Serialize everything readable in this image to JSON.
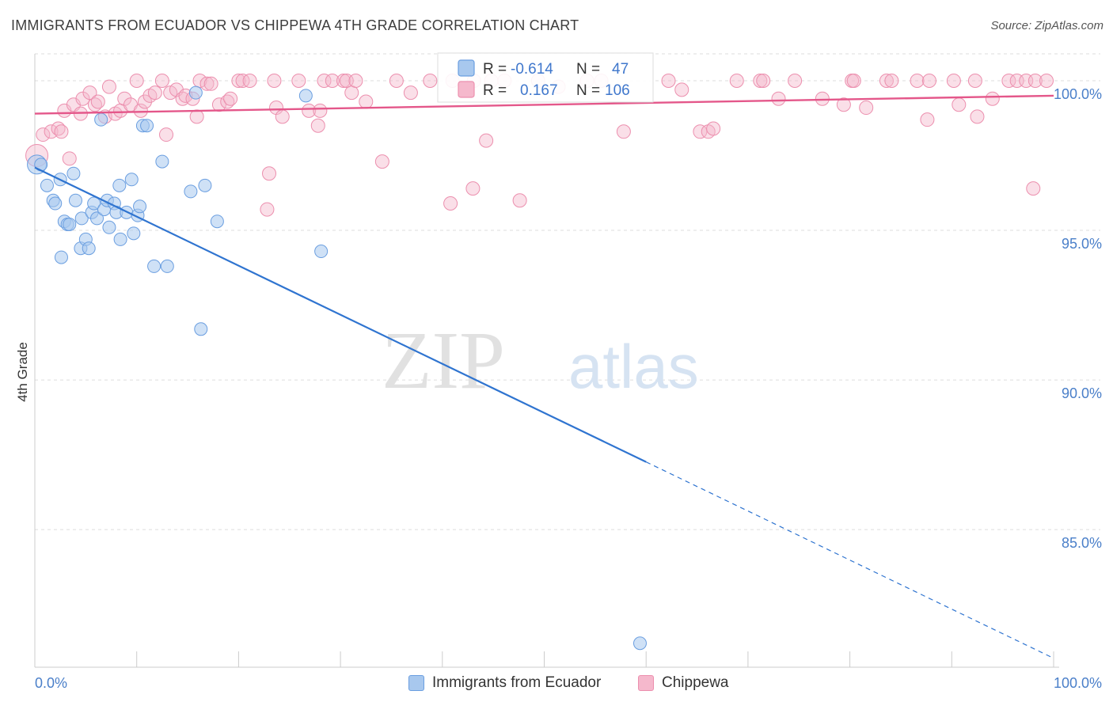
{
  "header": {
    "title": "IMMIGRANTS FROM ECUADOR VS CHIPPEWA 4TH GRADE CORRELATION CHART",
    "source": "Source: ZipAtlas.com"
  },
  "watermark": {
    "zip": "ZIP",
    "atlas": "atlas"
  },
  "legend": {
    "rows": [
      {
        "r_label": "R = ",
        "r_value": "-0.614",
        "n_label": "N = ",
        "n_value": "47"
      },
      {
        "r_label": "R = ",
        "r_value": "0.167",
        "n_label": "N = ",
        "n_value": "106"
      }
    ]
  },
  "colors": {
    "blue_fill": "#a8c8ee",
    "blue_stroke": "#6a9ee0",
    "blue_line": "#2f74d0",
    "pink_fill": "#f5b8cc",
    "pink_stroke": "#ec8fae",
    "pink_line": "#e4578a",
    "tick": "#4a7fc9",
    "grid": "#dddddd"
  },
  "chart_data": {
    "type": "scatter",
    "title": "IMMIGRANTS FROM ECUADOR VS CHIPPEWA 4TH GRADE CORRELATION CHART",
    "xlabel": "",
    "ylabel": "4th Grade",
    "xlim": [
      0,
      100
    ],
    "ylim": [
      80.4,
      100.9
    ],
    "x_tick_labels": [
      "0.0%",
      "100.0%"
    ],
    "y_ticks": [
      85,
      90,
      95,
      100
    ],
    "y_tick_labels": [
      "85.0%",
      "90.0%",
      "95.0%",
      "100.0%"
    ],
    "grid": true,
    "legend_position": "bottom",
    "series": [
      {
        "name": "Immigrants from Ecuador",
        "color": "#6a9ee0",
        "r": -0.614,
        "n": 47,
        "trend": {
          "x0": 0,
          "y0": 97.1,
          "x1": 100,
          "y1": 80.7,
          "solid_until_x": 60
        },
        "points": [
          [
            0.2,
            97.2,
            2
          ],
          [
            0.6,
            97.2,
            1
          ],
          [
            1.2,
            96.5,
            1
          ],
          [
            1.8,
            96.0,
            1
          ],
          [
            2.0,
            95.9,
            1
          ],
          [
            2.5,
            96.7,
            1
          ],
          [
            2.6,
            94.1,
            1
          ],
          [
            2.9,
            95.3,
            1
          ],
          [
            3.2,
            95.2,
            1
          ],
          [
            3.4,
            95.2,
            1
          ],
          [
            3.8,
            96.9,
            1
          ],
          [
            4.0,
            96.0,
            1
          ],
          [
            4.5,
            94.4,
            1
          ],
          [
            4.6,
            95.4,
            1
          ],
          [
            5.0,
            94.7,
            1
          ],
          [
            5.3,
            94.4,
            1
          ],
          [
            5.6,
            95.6,
            1
          ],
          [
            5.8,
            95.9,
            1
          ],
          [
            6.1,
            95.4,
            1
          ],
          [
            6.5,
            98.7,
            1
          ],
          [
            6.8,
            95.7,
            1
          ],
          [
            7.1,
            96.0,
            1
          ],
          [
            7.3,
            95.1,
            1
          ],
          [
            7.8,
            95.9,
            1
          ],
          [
            8.0,
            95.6,
            1
          ],
          [
            8.3,
            96.5,
            1
          ],
          [
            8.4,
            94.7,
            1
          ],
          [
            9.0,
            95.6,
            1
          ],
          [
            9.5,
            96.7,
            1
          ],
          [
            9.7,
            94.9,
            1
          ],
          [
            10.1,
            95.5,
            1
          ],
          [
            10.3,
            95.8,
            1
          ],
          [
            10.6,
            98.5,
            1
          ],
          [
            11.0,
            98.5,
            1
          ],
          [
            11.7,
            93.8,
            1
          ],
          [
            12.5,
            97.3,
            1
          ],
          [
            13.0,
            93.8,
            1
          ],
          [
            15.3,
            96.3,
            1
          ],
          [
            15.8,
            99.6,
            1
          ],
          [
            16.3,
            91.7,
            1
          ],
          [
            16.7,
            96.5,
            1
          ],
          [
            17.9,
            95.3,
            1
          ],
          [
            26.6,
            99.5,
            1
          ],
          [
            28.1,
            94.3,
            1
          ],
          [
            59.4,
            81.2,
            1
          ]
        ]
      },
      {
        "name": "Chippewa",
        "color": "#ec8fae",
        "r": 0.167,
        "n": 106,
        "trend": {
          "x0": 0,
          "y0": 98.9,
          "x1": 100,
          "y1": 99.5
        },
        "points": [
          [
            0.2,
            97.5,
            2
          ],
          [
            0.8,
            98.2,
            1
          ],
          [
            1.6,
            98.3,
            1
          ],
          [
            2.3,
            98.4,
            1
          ],
          [
            2.6,
            98.3,
            1
          ],
          [
            2.9,
            99.0,
            1
          ],
          [
            3.4,
            97.4,
            1
          ],
          [
            3.8,
            99.2,
            1
          ],
          [
            4.5,
            98.9,
            1
          ],
          [
            4.7,
            99.4,
            1
          ],
          [
            5.4,
            99.6,
            1
          ],
          [
            5.9,
            99.2,
            1
          ],
          [
            6.2,
            99.3,
            1
          ],
          [
            6.9,
            98.8,
            1
          ],
          [
            7.3,
            99.8,
            1
          ],
          [
            7.9,
            98.9,
            1
          ],
          [
            8.4,
            99.0,
            1
          ],
          [
            8.8,
            99.4,
            1
          ],
          [
            9.4,
            99.2,
            1
          ],
          [
            10.0,
            100.0,
            1
          ],
          [
            10.4,
            99.0,
            1
          ],
          [
            10.8,
            99.3,
            1
          ],
          [
            11.3,
            99.5,
            1
          ],
          [
            11.8,
            99.6,
            1
          ],
          [
            12.5,
            100.0,
            1
          ],
          [
            12.9,
            98.2,
            1
          ],
          [
            13.3,
            99.6,
            1
          ],
          [
            13.9,
            99.7,
            1
          ],
          [
            14.5,
            99.4,
            1
          ],
          [
            14.8,
            99.5,
            1
          ],
          [
            15.5,
            99.4,
            1
          ],
          [
            15.9,
            98.8,
            1
          ],
          [
            16.2,
            100.0,
            1
          ],
          [
            16.9,
            99.9,
            1
          ],
          [
            17.3,
            99.9,
            1
          ],
          [
            18.1,
            99.2,
            1
          ],
          [
            18.9,
            99.3,
            1
          ],
          [
            19.2,
            99.4,
            1
          ],
          [
            20.0,
            100.0,
            1
          ],
          [
            20.4,
            100.0,
            1
          ],
          [
            21.1,
            100.0,
            1
          ],
          [
            22.8,
            95.7,
            1
          ],
          [
            23.0,
            96.9,
            1
          ],
          [
            23.5,
            100.0,
            1
          ],
          [
            23.7,
            99.1,
            1
          ],
          [
            24.3,
            98.8,
            1
          ],
          [
            25.9,
            100.0,
            1
          ],
          [
            26.9,
            99.0,
            1
          ],
          [
            27.8,
            98.5,
            1
          ],
          [
            28.0,
            99.0,
            1
          ],
          [
            28.4,
            100.0,
            1
          ],
          [
            29.2,
            100.0,
            1
          ],
          [
            30.3,
            100.0,
            1
          ],
          [
            30.6,
            100.0,
            1
          ],
          [
            31.1,
            99.6,
            1
          ],
          [
            31.5,
            100.0,
            1
          ],
          [
            32.5,
            99.3,
            1
          ],
          [
            34.1,
            97.3,
            1
          ],
          [
            35.5,
            100.0,
            1
          ],
          [
            36.9,
            99.6,
            1
          ],
          [
            38.8,
            100.0,
            1
          ],
          [
            40.8,
            95.9,
            1
          ],
          [
            41.0,
            100.0,
            1
          ],
          [
            43.0,
            96.4,
            1
          ],
          [
            43.1,
            100.0,
            1
          ],
          [
            44.3,
            98.0,
            1
          ],
          [
            44.8,
            100.0,
            1
          ],
          [
            46.1,
            100.0,
            1
          ],
          [
            47.6,
            96.0,
            1
          ],
          [
            49.4,
            100.0,
            1
          ],
          [
            51.4,
            99.8,
            1
          ],
          [
            54.2,
            100.0,
            1
          ],
          [
            55.6,
            100.0,
            1
          ],
          [
            57.8,
            98.3,
            1
          ],
          [
            62.2,
            100.0,
            1
          ],
          [
            63.5,
            99.7,
            1
          ],
          [
            65.3,
            98.3,
            1
          ],
          [
            66.1,
            98.3,
            1
          ],
          [
            66.6,
            98.4,
            1
          ],
          [
            68.9,
            100.0,
            1
          ],
          [
            71.2,
            100.0,
            1
          ],
          [
            71.5,
            100.0,
            1
          ],
          [
            73.0,
            99.4,
            1
          ],
          [
            74.6,
            100.0,
            1
          ],
          [
            77.3,
            99.4,
            1
          ],
          [
            79.4,
            99.2,
            1
          ],
          [
            80.2,
            100.0,
            1
          ],
          [
            80.4,
            100.0,
            1
          ],
          [
            81.6,
            99.1,
            1
          ],
          [
            83.6,
            100.0,
            1
          ],
          [
            84.1,
            100.0,
            1
          ],
          [
            86.6,
            100.0,
            1
          ],
          [
            87.6,
            98.7,
            1
          ],
          [
            87.8,
            100.0,
            1
          ],
          [
            90.2,
            100.0,
            1
          ],
          [
            90.7,
            99.2,
            1
          ],
          [
            92.3,
            100.0,
            1
          ],
          [
            92.5,
            98.8,
            1
          ],
          [
            94.0,
            99.4,
            1
          ],
          [
            95.6,
            100.0,
            1
          ],
          [
            96.4,
            100.0,
            1
          ],
          [
            97.3,
            100.0,
            1
          ],
          [
            98.0,
            96.4,
            1
          ],
          [
            98.2,
            100.0,
            1
          ],
          [
            99.3,
            100.0,
            1
          ]
        ]
      }
    ]
  }
}
